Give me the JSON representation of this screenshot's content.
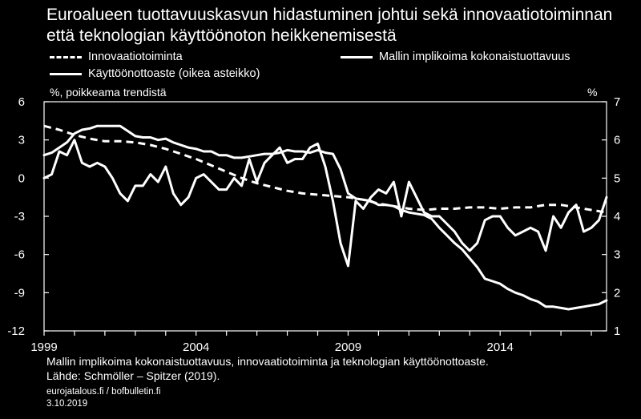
{
  "chart_data": {
    "type": "line",
    "title_line1": "Euroalueen tuottavuuskasvun hidastuminen johtui sekä innovaatiotoiminnan",
    "title_line2": "että teknologian käyttöönoton heikkenemisestä",
    "left_axis_label": "%, poikkeama trendistä",
    "right_axis_label": "%",
    "left_ylim": [
      -12,
      6
    ],
    "right_ylim": [
      1,
      7
    ],
    "left_ticks": [
      6,
      3,
      0,
      -3,
      -6,
      -9,
      -12
    ],
    "right_ticks": [
      7,
      6,
      5,
      4,
      3,
      2,
      1
    ],
    "xlim": [
      1999,
      2017.5
    ],
    "x_tick_values": [
      1999,
      2004,
      2009,
      2014
    ],
    "x_tick_labels": [
      "1999",
      "2004",
      "2009",
      "2014"
    ],
    "legend": {
      "innovation": "Innovaatiotoiminta",
      "tfp": "Mallin implikoima kokonaistuottavuus",
      "adoption": "Käyttöönottoaste (oikea asteikko)"
    },
    "series": [
      {
        "name": "Innovaatiotoiminta",
        "axis": "left",
        "style": "dashed",
        "x": [
          1999,
          1999.5,
          2000,
          2000.5,
          2001,
          2001.5,
          2002,
          2002.5,
          2003,
          2003.5,
          2004,
          2004.5,
          2005,
          2005.5,
          2006,
          2006.5,
          2007,
          2007.5,
          2008,
          2008.5,
          2009,
          2009.5,
          2010,
          2010.5,
          2011,
          2011.5,
          2012,
          2012.5,
          2013,
          2013.5,
          2014,
          2014.5,
          2015,
          2015.5,
          2016,
          2016.5,
          2017,
          2017.5
        ],
        "values": [
          4.1,
          3.8,
          3.4,
          3.1,
          2.9,
          2.9,
          2.8,
          2.6,
          2.3,
          1.9,
          1.5,
          1.0,
          0.5,
          0.0,
          -0.4,
          -0.7,
          -1.0,
          -1.2,
          -1.3,
          -1.4,
          -1.5,
          -1.7,
          -2.0,
          -2.2,
          -2.4,
          -2.5,
          -2.4,
          -2.4,
          -2.3,
          -2.3,
          -2.4,
          -2.3,
          -2.3,
          -2.1,
          -2.1,
          -2.3,
          -2.5,
          -2.7
        ]
      },
      {
        "name": "Mallin implikoima kokonaistuottavuus",
        "axis": "left",
        "style": "solid",
        "x": [
          1999,
          1999.25,
          1999.5,
          1999.75,
          2000,
          2000.25,
          2000.5,
          2000.75,
          2001,
          2001.25,
          2001.5,
          2001.75,
          2002,
          2002.25,
          2002.5,
          2002.75,
          2003,
          2003.25,
          2003.5,
          2003.75,
          2004,
          2004.25,
          2004.5,
          2004.75,
          2005,
          2005.25,
          2005.5,
          2005.75,
          2006,
          2006.25,
          2006.5,
          2006.75,
          2007,
          2007.25,
          2007.5,
          2007.75,
          2008,
          2008.25,
          2008.5,
          2008.75,
          2009,
          2009.25,
          2009.5,
          2009.75,
          2010,
          2010.25,
          2010.5,
          2010.75,
          2011,
          2011.25,
          2011.5,
          2011.75,
          2012,
          2012.25,
          2012.5,
          2012.75,
          2013,
          2013.25,
          2013.5,
          2013.75,
          2014,
          2014.25,
          2014.5,
          2014.75,
          2015,
          2015.25,
          2015.5,
          2015.75,
          2016,
          2016.25,
          2016.5,
          2016.75,
          2017,
          2017.25,
          2017.5
        ],
        "values": [
          1.8,
          2.0,
          2.4,
          2.8,
          3.5,
          3.8,
          3.9,
          4.1,
          4.1,
          4.1,
          4.1,
          3.7,
          3.3,
          3.2,
          3.2,
          3.0,
          3.1,
          2.8,
          2.6,
          2.4,
          2.3,
          2.1,
          2.1,
          1.8,
          1.8,
          1.6,
          1.6,
          1.7,
          1.8,
          1.9,
          1.9,
          2.0,
          2.2,
          2.1,
          2.1,
          2.0,
          2.2,
          2.0,
          1.9,
          0.7,
          -1.2,
          -1.6,
          -1.7,
          -1.8,
          -2.1,
          -2.1,
          -2.2,
          -2.5,
          -2.7,
          -2.8,
          -2.9,
          -3.2,
          -3.9,
          -4.5,
          -5.1,
          -5.6,
          -6.3,
          -7.0,
          -7.9,
          -8.1,
          -8.3,
          -8.7,
          -9.0,
          -9.2,
          -9.5,
          -9.7,
          -10.1,
          -10.1,
          -10.2,
          -10.3,
          -10.2,
          -10.1,
          -10.0,
          -9.9,
          -9.6
        ]
      },
      {
        "name": "Käyttöönottoaste (oikea asteikko)",
        "axis": "right",
        "style": "solid",
        "x": [
          1999,
          1999.25,
          1999.5,
          1999.75,
          2000,
          2000.25,
          2000.5,
          2000.75,
          2001,
          2001.25,
          2001.5,
          2001.75,
          2002,
          2002.25,
          2002.5,
          2002.75,
          2003,
          2003.25,
          2003.5,
          2003.75,
          2004,
          2004.25,
          2004.5,
          2004.75,
          2005,
          2005.25,
          2005.5,
          2005.75,
          2006,
          2006.25,
          2006.5,
          2006.75,
          2007,
          2007.25,
          2007.5,
          2007.75,
          2008,
          2008.25,
          2008.5,
          2008.75,
          2009,
          2009.25,
          2009.5,
          2009.75,
          2010,
          2010.25,
          2010.5,
          2010.75,
          2011,
          2011.25,
          2011.5,
          2011.75,
          2012,
          2012.25,
          2012.5,
          2012.75,
          2013,
          2013.25,
          2013.5,
          2013.75,
          2014,
          2014.25,
          2014.5,
          2014.75,
          2015,
          2015.25,
          2015.5,
          2015.75,
          2016,
          2016.25,
          2016.5,
          2016.75,
          2017,
          2017.25,
          2017.5
        ],
        "values": [
          5.0,
          5.1,
          5.7,
          5.6,
          6.0,
          5.4,
          5.3,
          5.4,
          5.3,
          5.0,
          4.6,
          4.4,
          4.8,
          4.8,
          5.1,
          4.9,
          5.3,
          4.6,
          4.3,
          4.5,
          5.0,
          5.1,
          4.9,
          4.7,
          4.7,
          5.0,
          4.8,
          5.5,
          4.9,
          5.4,
          5.6,
          5.8,
          5.4,
          5.5,
          5.5,
          5.8,
          5.9,
          5.3,
          4.4,
          3.3,
          2.7,
          4.4,
          4.2,
          4.5,
          4.7,
          4.6,
          4.9,
          4.0,
          4.9,
          4.5,
          4.1,
          4.0,
          4.0,
          3.8,
          3.6,
          3.3,
          3.1,
          3.3,
          3.9,
          4.0,
          4.0,
          3.7,
          3.5,
          3.6,
          3.7,
          3.6,
          3.1,
          4.0,
          3.7,
          4.1,
          4.3,
          3.6,
          3.7,
          3.9,
          4.5
        ]
      }
    ]
  },
  "footnote": {
    "line1": "Mallin implikoima kokonaistuottavuus, innovaatiotoiminta ja teknologian käyttöönottoaste.",
    "line2": "Lähde: Schmöller – Spitzer (2019)."
  },
  "credits": {
    "site": "eurojatalous.fi / bofbulletin.fi",
    "date": "3.10.2019"
  },
  "colors": {
    "background": "#000000",
    "foreground": "#ffffff"
  }
}
